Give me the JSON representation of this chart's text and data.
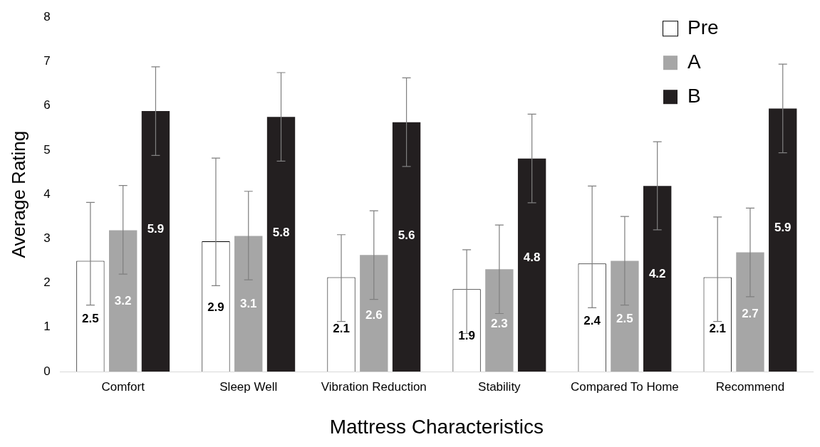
{
  "chart_data": {
    "type": "bar",
    "xlabel": "Mattress Characteristics",
    "ylabel": "Average Rating",
    "categories": [
      "Comfort",
      "Sleep Well",
      "Vibration Reduction",
      "Stability",
      "Compared To Home",
      "Recommend"
    ],
    "series": [
      {
        "name": "Pre",
        "color": "#ffffff",
        "values": [
          2.5,
          2.94,
          2.13,
          1.86,
          2.44,
          2.13
        ],
        "value_labels": [
          "2.5",
          "2.9",
          "2.1",
          "1.9",
          "2.4",
          "2.1"
        ],
        "errors": [
          [
            1.5,
            3.82
          ],
          [
            1.94,
            4.82
          ],
          [
            1.13,
            3.09
          ],
          [
            0.86,
            2.75
          ],
          [
            1.44,
            4.19
          ],
          [
            1.13,
            3.49
          ]
        ]
      },
      {
        "name": "A",
        "color": "#a6a6a6",
        "values": [
          3.19,
          3.06,
          2.63,
          2.31,
          2.5,
          2.69
        ],
        "value_labels": [
          "3.2",
          "3.1",
          "2.6",
          "2.3",
          "2.5",
          "2.7"
        ],
        "errors": [
          [
            2.2,
            4.2
          ],
          [
            2.07,
            4.07
          ],
          [
            1.63,
            3.63
          ],
          [
            1.31,
            3.31
          ],
          [
            1.5,
            3.5
          ],
          [
            1.69,
            3.69
          ]
        ]
      },
      {
        "name": "B",
        "color": "#231f20",
        "values": [
          5.88,
          5.75,
          5.63,
          4.81,
          4.19,
          5.94
        ],
        "value_labels": [
          "5.9",
          "5.8",
          "5.6",
          "4.8",
          "4.2",
          "5.9"
        ],
        "errors": [
          [
            4.88,
            6.88
          ],
          [
            4.75,
            6.75
          ],
          [
            4.63,
            6.63
          ],
          [
            3.81,
            5.81
          ],
          [
            3.2,
            5.19
          ],
          [
            4.94,
            6.94
          ]
        ]
      }
    ],
    "ylim": [
      0,
      8
    ],
    "yticks": [
      0,
      1,
      2,
      3,
      4,
      5,
      6,
      7,
      8
    ],
    "grid": false,
    "legend": "top right"
  }
}
